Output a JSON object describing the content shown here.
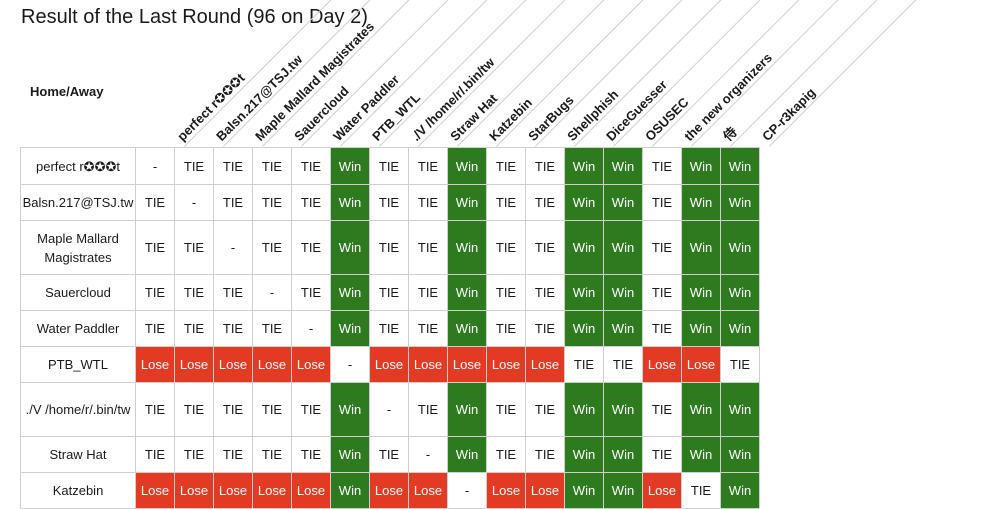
{
  "page": {
    "title": "Result of the Last Round (96 on Day 2)"
  },
  "table": {
    "corner_label": "Home/Away",
    "columns": [
      "perfect r✪✪✪t",
      "Balsn.217@TSJ.tw",
      "Maple Mallard Magistrates",
      "Sauercloud",
      "Water Paddler",
      "PTB_WTL",
      "./V /home/r/.bin/tw",
      "Straw Hat",
      "Katzebin",
      "StarBugs",
      "Shellphish",
      "DiceGuesser",
      "OSUSEC",
      "the new organizers",
      "侍",
      "CP-r3kapig"
    ],
    "rows": [
      {
        "label": "perfect r✪✪✪t",
        "cells": [
          "-",
          "TIE",
          "TIE",
          "TIE",
          "TIE",
          "Win",
          "TIE",
          "TIE",
          "Win",
          "TIE",
          "TIE",
          "Win",
          "Win",
          "TIE",
          "Win",
          "Win"
        ]
      },
      {
        "label": "Balsn.217@TSJ.tw",
        "cells": [
          "TIE",
          "-",
          "TIE",
          "TIE",
          "TIE",
          "Win",
          "TIE",
          "TIE",
          "Win",
          "TIE",
          "TIE",
          "Win",
          "Win",
          "TIE",
          "Win",
          "Win"
        ]
      },
      {
        "label": "Maple Mallard Magistrates",
        "cells": [
          "TIE",
          "TIE",
          "-",
          "TIE",
          "TIE",
          "Win",
          "TIE",
          "TIE",
          "Win",
          "TIE",
          "TIE",
          "Win",
          "Win",
          "TIE",
          "Win",
          "Win"
        ]
      },
      {
        "label": "Sauercloud",
        "cells": [
          "TIE",
          "TIE",
          "TIE",
          "-",
          "TIE",
          "Win",
          "TIE",
          "TIE",
          "Win",
          "TIE",
          "TIE",
          "Win",
          "Win",
          "TIE",
          "Win",
          "Win"
        ]
      },
      {
        "label": "Water Paddler",
        "cells": [
          "TIE",
          "TIE",
          "TIE",
          "TIE",
          "-",
          "Win",
          "TIE",
          "TIE",
          "Win",
          "TIE",
          "TIE",
          "Win",
          "Win",
          "TIE",
          "Win",
          "Win"
        ]
      },
      {
        "label": "PTB_WTL",
        "cells": [
          "Lose",
          "Lose",
          "Lose",
          "Lose",
          "Lose",
          "-",
          "Lose",
          "Lose",
          "Lose",
          "Lose",
          "Lose",
          "TIE",
          "TIE",
          "Lose",
          "Lose",
          "TIE"
        ]
      },
      {
        "label": "./V /home/r/.bin/tw",
        "cells": [
          "TIE",
          "TIE",
          "TIE",
          "TIE",
          "TIE",
          "Win",
          "-",
          "TIE",
          "Win",
          "TIE",
          "TIE",
          "Win",
          "Win",
          "TIE",
          "Win",
          "Win"
        ]
      },
      {
        "label": "Straw Hat",
        "cells": [
          "TIE",
          "TIE",
          "TIE",
          "TIE",
          "TIE",
          "Win",
          "TIE",
          "-",
          "Win",
          "TIE",
          "TIE",
          "Win",
          "Win",
          "TIE",
          "Win",
          "Win"
        ]
      },
      {
        "label": "Katzebin",
        "cells": [
          "Lose",
          "Lose",
          "Lose",
          "Lose",
          "Lose",
          "Win",
          "Lose",
          "Lose",
          "-",
          "Lose",
          "Lose",
          "Win",
          "Win",
          "Lose",
          "TIE",
          "Win"
        ]
      }
    ]
  },
  "colors": {
    "win": "#2d7a1f",
    "lose": "#e23a23",
    "tie": "#ffffff",
    "border": "#cfcfcf"
  }
}
